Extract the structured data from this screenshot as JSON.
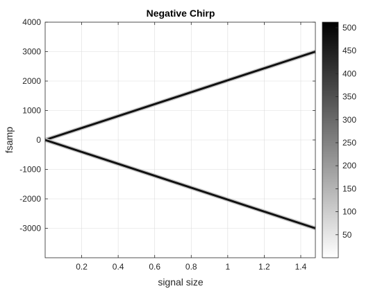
{
  "chart_data": {
    "type": "heatmap",
    "title": "Negative Chirp",
    "xlabel": "signal size",
    "ylabel": "fsamp",
    "xlim": [
      0,
      1.48
    ],
    "ylim": [
      -4000,
      4000
    ],
    "xticks": [
      0.2,
      0.4,
      0.6,
      0.8,
      1,
      1.2,
      1.4
    ],
    "xtick_labels": [
      "0.2",
      "0.4",
      "0.6",
      "0.8",
      "1",
      "1.2",
      "1.4"
    ],
    "yticks": [
      4000,
      3000,
      2000,
      1000,
      0,
      -1000,
      -2000,
      -3000
    ],
    "ytick_labels": [
      "4000",
      "3000",
      "2000",
      "1000",
      "0",
      "-1000",
      "-2000",
      "-3000"
    ],
    "grid": true,
    "colormap": "gray-reversed",
    "colorbar": {
      "range": [
        0,
        512
      ],
      "ticks": [
        50,
        100,
        150,
        200,
        250,
        300,
        350,
        400,
        450,
        500
      ],
      "tick_labels": [
        "50",
        "100",
        "150",
        "200",
        "250",
        "300",
        "350",
        "400",
        "450",
        "500"
      ]
    },
    "series": [
      {
        "x": [
          0,
          1.48
        ],
        "y": [
          0,
          3000
        ]
      },
      {
        "x": [
          0,
          1.48
        ],
        "y": [
          0,
          -3000
        ]
      }
    ]
  }
}
